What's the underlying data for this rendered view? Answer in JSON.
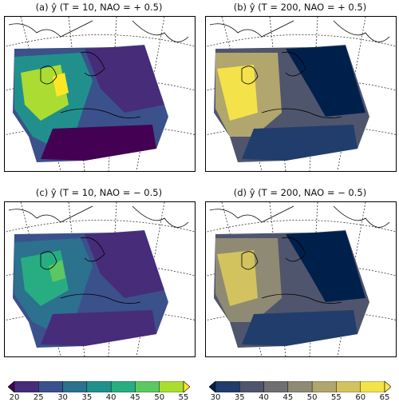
{
  "panels": [
    {
      "title": "(a) ŷ (T = 10, NAO = + 0.5)",
      "scale": "viridis"
    },
    {
      "title": "(b) ŷ (T = 200, NAO = + 0.5)",
      "scale": "cividis"
    },
    {
      "title": "(c) ŷ (T = 10, NAO = − 0.5)",
      "scale": "viridis"
    },
    {
      "title": "(d) ŷ (T = 200, NAO = − 0.5)",
      "scale": "cividis"
    }
  ],
  "colorbars": [
    {
      "ticks": [
        "20",
        "25",
        "30",
        "35",
        "40",
        "45",
        "50",
        "55"
      ],
      "colors": [
        "#440154",
        "#472c7a",
        "#3b518b",
        "#2c718e",
        "#21908d",
        "#27ad81",
        "#5cc863",
        "#aadc32",
        "#fde725"
      ]
    },
    {
      "ticks": [
        "30",
        "35",
        "40",
        "45",
        "50",
        "55",
        "60",
        "65"
      ],
      "colors": [
        "#00204c",
        "#213d6b",
        "#4f556d",
        "#6f6f71",
        "#8f8a74",
        "#b0a66e",
        "#d2c35f",
        "#f3e24a",
        "#ffea46"
      ]
    }
  ]
}
